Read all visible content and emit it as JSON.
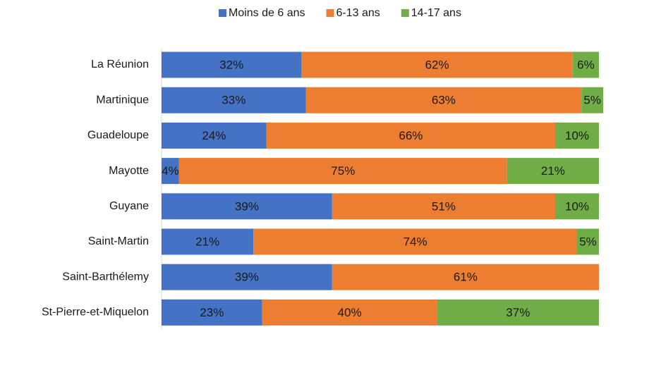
{
  "chart_data": {
    "type": "stacked-bar-horizontal",
    "categories": [
      "La Réunion",
      "Martinique",
      "Guadeloupe",
      "Mayotte",
      "Guyane",
      "Saint-Martin",
      "Saint-Barthélemy",
      "St-Pierre-et-Miquelon"
    ],
    "series": [
      {
        "name": "Moins de 6 ans",
        "color": "#4472c4",
        "values": [
          32,
          33,
          24,
          4,
          39,
          21,
          39,
          23
        ],
        "value_labels": [
          "32%",
          "33%",
          "24%",
          "4%",
          "39%",
          "21%",
          "39%",
          "23%"
        ]
      },
      {
        "name": "6-13 ans",
        "color": "#ed7d31",
        "values": [
          62,
          63,
          66,
          75,
          51,
          74,
          61,
          40
        ],
        "value_labels": [
          "62%",
          "63%",
          "66%",
          "75%",
          "51%",
          "74%",
          "61%",
          "40%"
        ]
      },
      {
        "name": "14-17 ans",
        "color": "#70ad47",
        "values": [
          6,
          5,
          10,
          21,
          10,
          5,
          null,
          37
        ],
        "value_labels": [
          "6%",
          "5%",
          "10%",
          "21%",
          "10%",
          "5%",
          null,
          "37%"
        ]
      }
    ],
    "xlim": [
      0,
      100
    ],
    "legend": "top"
  }
}
